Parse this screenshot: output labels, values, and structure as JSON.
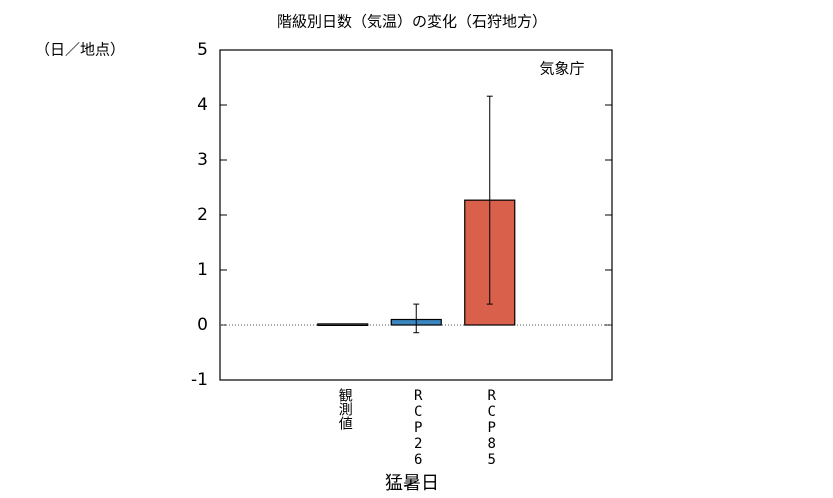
{
  "chart_data": {
    "type": "bar",
    "title": "階級別日数（気温）の変化（石狩地方）",
    "y_unit_label": "（日／地点）",
    "annotation": "気象庁",
    "x_label": "猛暑日",
    "categories": [
      "観測値",
      "RCP26",
      "RCP85"
    ],
    "values": [
      0.02,
      0.1,
      2.27
    ],
    "error_lower": [
      null,
      -0.14,
      0.38
    ],
    "error_upper": [
      null,
      0.38,
      4.16
    ],
    "colors": [
      "#9a9a9a",
      "#3a87c0",
      "#d9604a"
    ],
    "ylim": [
      -1,
      5
    ],
    "yticks": [
      -1,
      0,
      1,
      2,
      3,
      4,
      5
    ],
    "zero_line": true
  }
}
